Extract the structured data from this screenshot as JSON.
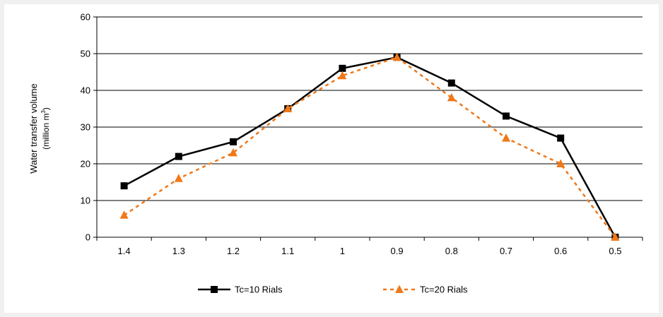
{
  "chart_data": {
    "type": "line",
    "title": "",
    "xlabel": "",
    "ylabel": "Water transfer volume",
    "ylabel_unit_prefix": "(million m",
    "ylabel_unit_sup": "3",
    "ylabel_unit_suffix": ")",
    "categories": [
      "1.4",
      "1.3",
      "1.2",
      "1.1",
      "1",
      "0.9",
      "0.8",
      "0.7",
      "0.6",
      "0.5"
    ],
    "ylim": [
      0,
      60
    ],
    "yticks": [
      "0",
      "10",
      "20",
      "30",
      "40",
      "50",
      "60"
    ],
    "grid": "horizontal",
    "legend_position": "bottom",
    "series": [
      {
        "name": "Tc=10 Rials",
        "values": [
          14,
          22,
          26,
          35,
          46,
          49,
          42,
          33,
          27,
          0
        ],
        "color": "#000000",
        "marker": "square",
        "line_style": "solid"
      },
      {
        "name": "Tc=20 Rials",
        "values": [
          6,
          16,
          23,
          35,
          44,
          49,
          38,
          27,
          20,
          0
        ],
        "color": "#f07818",
        "marker": "triangle",
        "line_style": "dashed"
      }
    ]
  }
}
